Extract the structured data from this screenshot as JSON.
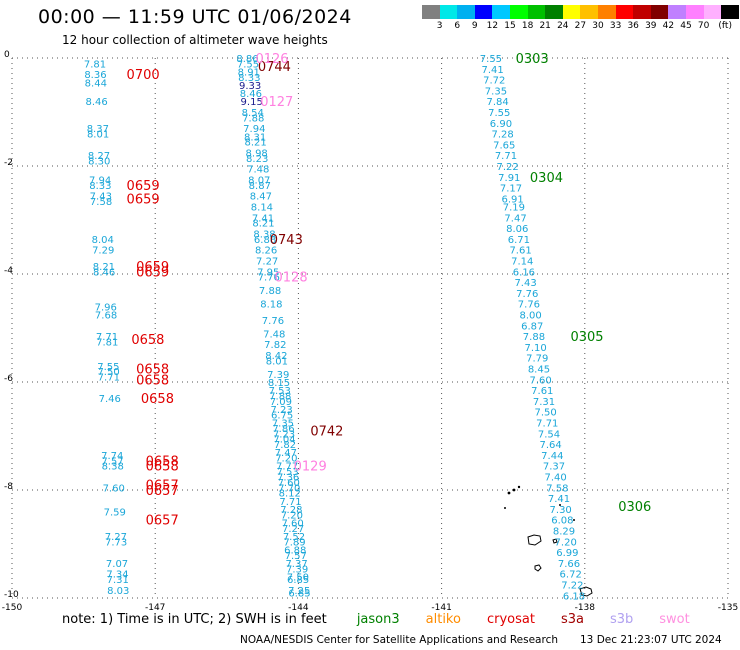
{
  "title": "00:00 — 11:59 UTC 01/06/2024",
  "subtitle": "12 hour collection of altimeter wave heights",
  "legend": {
    "colors": [
      "#808080",
      "#00e8e8",
      "#00b0f0",
      "#0000ff",
      "#00c8ff",
      "#00ff00",
      "#00c000",
      "#008000",
      "#ffff00",
      "#ffc000",
      "#ff8000",
      "#ff0000",
      "#c00000",
      "#800000",
      "#c080ff",
      "#ff80ff",
      "#ffb0ff",
      "#000000"
    ],
    "labels": [
      "3",
      "6",
      "9",
      "12",
      "15",
      "18",
      "21",
      "24",
      "27",
      "30",
      "33",
      "36",
      "39",
      "42",
      "45",
      "70",
      "(ft)"
    ]
  },
  "note": {
    "text": "note:  1) Time is in UTC;  2) SWH is in feet",
    "missions": [
      {
        "name": "jason3",
        "color": "#008000"
      },
      {
        "name": "altiko",
        "color": "#ff8c00"
      },
      {
        "name": "cryosat",
        "color": "#e00000"
      },
      {
        "name": "s3a",
        "color": "#a00000"
      },
      {
        "name": "s3b",
        "color": "#b0a0f0"
      },
      {
        "name": "swot",
        "color": "#ff90e0"
      }
    ]
  },
  "credit": "NOAA/NESDIS Center for Satellite Applications and Research",
  "timestamp": "13 Dec 21:23:07 UTC 2024",
  "chart_data": {
    "type": "scatter",
    "title": "12 hour collection of altimeter wave heights",
    "xlabel": "",
    "ylabel": "",
    "xlim": [
      -150,
      -135
    ],
    "ylim": [
      -10,
      0
    ],
    "grid": true,
    "x_ticks": [
      "-150",
      "-147",
      "-144",
      "-141",
      "-138",
      "-135"
    ],
    "y_ticks": [
      "0",
      "-2",
      "-4",
      "-6",
      "-8",
      "-10"
    ],
    "series": [
      {
        "name": "0700-0657 pass",
        "color": "#1aa6d8",
        "lon": -148.5,
        "values": [
          {
            "lat": -0.1,
            "v": "7.81"
          },
          {
            "lat": -0.3,
            "v": "8.36"
          },
          {
            "lat": -0.45,
            "v": "8.44"
          },
          {
            "lat": -0.8,
            "v": "8.46"
          },
          {
            "lat": -1.3,
            "v": "8.37"
          },
          {
            "lat": -1.4,
            "v": "8.01"
          },
          {
            "lat": -1.8,
            "v": "8.27"
          },
          {
            "lat": -1.9,
            "v": "8.30"
          },
          {
            "lat": -2.25,
            "v": "7.94"
          },
          {
            "lat": -2.35,
            "v": "8.33"
          },
          {
            "lat": -2.55,
            "v": "7.43"
          },
          {
            "lat": -2.65,
            "v": "7.58"
          },
          {
            "lat": -3.35,
            "v": "8.04"
          },
          {
            "lat": -3.55,
            "v": "7.29"
          },
          {
            "lat": -3.85,
            "v": "8.21"
          },
          {
            "lat": -3.95,
            "v": "8.46"
          },
          {
            "lat": -4.6,
            "v": "7.96"
          },
          {
            "lat": -4.75,
            "v": "7.68"
          },
          {
            "lat": -5.15,
            "v": "7.71"
          },
          {
            "lat": -5.25,
            "v": "7.81"
          },
          {
            "lat": -5.7,
            "v": "7.55"
          },
          {
            "lat": -5.8,
            "v": "7.50"
          },
          {
            "lat": -5.9,
            "v": "7.71"
          },
          {
            "lat": -6.3,
            "v": "7.46"
          },
          {
            "lat": -7.35,
            "v": "7.74"
          },
          {
            "lat": -7.45,
            "v": "7.57"
          },
          {
            "lat": -7.55,
            "v": "8.38"
          },
          {
            "lat": -7.95,
            "v": "7.60"
          },
          {
            "lat": -8.4,
            "v": "7.59"
          },
          {
            "lat": -8.85,
            "v": "7.27"
          },
          {
            "lat": -8.95,
            "v": "7.73"
          },
          {
            "lat": -9.35,
            "v": "7.07"
          },
          {
            "lat": -9.55,
            "v": "7.34"
          },
          {
            "lat": -9.65,
            "v": "7.31"
          },
          {
            "lat": -9.85,
            "v": "8.03"
          }
        ]
      },
      {
        "name": "0744-0742 pass",
        "color": "#1aa6d8",
        "lon": -145.3,
        "values": [
          {
            "lat": 0.0,
            "v": "8.86"
          },
          {
            "lat": -0.1,
            "v": "7.55"
          },
          {
            "lat": -0.25,
            "v": "8.91"
          },
          {
            "lat": -0.35,
            "v": "8.33"
          },
          {
            "lat": -0.5,
            "v": "9.33"
          },
          {
            "lat": -0.65,
            "v": "8.46"
          },
          {
            "lat": -0.8,
            "v": "9.15"
          },
          {
            "lat": -1.0,
            "v": "8.54"
          },
          {
            "lat": -1.1,
            "v": "7.88"
          },
          {
            "lat": -1.3,
            "v": "7.94"
          },
          {
            "lat": -1.45,
            "v": "8.31"
          },
          {
            "lat": -1.55,
            "v": "8.21"
          },
          {
            "lat": -1.75,
            "v": "8.98"
          },
          {
            "lat": -1.85,
            "v": "8.23"
          },
          {
            "lat": -2.05,
            "v": "7.48"
          },
          {
            "lat": -2.25,
            "v": "8.07"
          },
          {
            "lat": -2.35,
            "v": "8.87"
          },
          {
            "lat": -2.55,
            "v": "8.47"
          },
          {
            "lat": -2.75,
            "v": "8.14"
          },
          {
            "lat": -2.95,
            "v": "7.41"
          },
          {
            "lat": -3.05,
            "v": "8.21"
          },
          {
            "lat": -3.25,
            "v": "8.38"
          },
          {
            "lat": -3.35,
            "v": "6.88"
          },
          {
            "lat": -3.55,
            "v": "8.26"
          },
          {
            "lat": -3.75,
            "v": "7.27"
          },
          {
            "lat": -3.95,
            "v": "7.95"
          },
          {
            "lat": -4.05,
            "v": "7.76"
          },
          {
            "lat": -4.3,
            "v": "7.88"
          },
          {
            "lat": -4.55,
            "v": "8.18"
          },
          {
            "lat": -4.85,
            "v": "7.76"
          },
          {
            "lat": -5.1,
            "v": "7.48"
          },
          {
            "lat": -5.3,
            "v": "7.82"
          },
          {
            "lat": -5.5,
            "v": "8.42"
          },
          {
            "lat": -5.6,
            "v": "8.01"
          },
          {
            "lat": -5.85,
            "v": "7.39"
          },
          {
            "lat": -6.0,
            "v": "8.15"
          },
          {
            "lat": -6.15,
            "v": "7.53"
          },
          {
            "lat": -6.25,
            "v": "7.88"
          },
          {
            "lat": -6.35,
            "v": "7.09"
          },
          {
            "lat": -6.5,
            "v": "7.23"
          },
          {
            "lat": -6.6,
            "v": "6.75"
          },
          {
            "lat": -6.75,
            "v": "7.35"
          },
          {
            "lat": -6.85,
            "v": "7.86"
          },
          {
            "lat": -6.95,
            "v": "7.23"
          },
          {
            "lat": -7.05,
            "v": "7.04"
          },
          {
            "lat": -7.15,
            "v": "7.82"
          },
          {
            "lat": -7.3,
            "v": "7.47"
          },
          {
            "lat": -7.4,
            "v": "7.20"
          },
          {
            "lat": -7.55,
            "v": "7.77"
          },
          {
            "lat": -7.65,
            "v": "7.53"
          },
          {
            "lat": -7.75,
            "v": "7.36"
          },
          {
            "lat": -7.85,
            "v": "7.60"
          },
          {
            "lat": -7.95,
            "v": "7.70"
          },
          {
            "lat": -8.05,
            "v": "8.12"
          },
          {
            "lat": -8.2,
            "v": "7.71"
          },
          {
            "lat": -8.35,
            "v": "7.28"
          },
          {
            "lat": -8.45,
            "v": "7.20"
          },
          {
            "lat": -8.6,
            "v": "7.60"
          },
          {
            "lat": -8.7,
            "v": "7.27"
          },
          {
            "lat": -8.85,
            "v": "7.52"
          },
          {
            "lat": -8.95,
            "v": "7.89"
          },
          {
            "lat": -9.1,
            "v": "6.88"
          },
          {
            "lat": -9.2,
            "v": "7.57"
          },
          {
            "lat": -9.35,
            "v": "7.37"
          },
          {
            "lat": -9.45,
            "v": "7.39"
          },
          {
            "lat": -9.6,
            "v": "7.50"
          },
          {
            "lat": -9.65,
            "v": "6.85"
          },
          {
            "lat": -9.85,
            "v": "7.25"
          },
          {
            "lat": -9.9,
            "v": "6.85"
          }
        ]
      },
      {
        "name": "0303-0306 pass",
        "color": "#1aa6d8",
        "lon": -140.2,
        "values": [
          {
            "lat": 0.0,
            "v": "7.55"
          },
          {
            "lat": -0.2,
            "v": "7.41"
          },
          {
            "lat": -0.4,
            "v": "7.72"
          },
          {
            "lat": -0.6,
            "v": "7.35"
          },
          {
            "lat": -0.8,
            "v": "7.84"
          },
          {
            "lat": -1.0,
            "v": "7.55"
          },
          {
            "lat": -1.2,
            "v": "6.90"
          },
          {
            "lat": -1.4,
            "v": "7.28"
          },
          {
            "lat": -1.6,
            "v": "7.65"
          },
          {
            "lat": -1.8,
            "v": "7.71"
          },
          {
            "lat": -2.0,
            "v": "7.22"
          },
          {
            "lat": -2.2,
            "v": "7.91"
          },
          {
            "lat": -2.4,
            "v": "7.17"
          },
          {
            "lat": -2.6,
            "v": "6.91"
          },
          {
            "lat": -2.75,
            "v": "7.19"
          },
          {
            "lat": -2.95,
            "v": "7.47"
          },
          {
            "lat": -3.15,
            "v": "8.06"
          },
          {
            "lat": -3.35,
            "v": "6.71"
          },
          {
            "lat": -3.55,
            "v": "7.61"
          },
          {
            "lat": -3.75,
            "v": "7.14"
          },
          {
            "lat": -3.95,
            "v": "6.16"
          },
          {
            "lat": -4.15,
            "v": "7.43"
          },
          {
            "lat": -4.35,
            "v": "7.76"
          },
          {
            "lat": -4.55,
            "v": "7.76"
          },
          {
            "lat": -4.75,
            "v": "8.00"
          },
          {
            "lat": -4.95,
            "v": "6.87"
          },
          {
            "lat": -5.15,
            "v": "7.88"
          },
          {
            "lat": -5.35,
            "v": "7.10"
          },
          {
            "lat": -5.55,
            "v": "7.79"
          },
          {
            "lat": -5.75,
            "v": "8.45"
          },
          {
            "lat": -5.95,
            "v": "7.60"
          },
          {
            "lat": -6.15,
            "v": "7.61"
          },
          {
            "lat": -6.35,
            "v": "7.31"
          },
          {
            "lat": -6.55,
            "v": "7.50"
          },
          {
            "lat": -6.75,
            "v": "7.71"
          },
          {
            "lat": -6.95,
            "v": "7.54"
          },
          {
            "lat": -7.15,
            "v": "7.64"
          },
          {
            "lat": -7.35,
            "v": "7.44"
          },
          {
            "lat": -7.55,
            "v": "7.37"
          },
          {
            "lat": -7.75,
            "v": "7.40"
          },
          {
            "lat": -7.95,
            "v": "7.58"
          },
          {
            "lat": -8.15,
            "v": "7.41"
          },
          {
            "lat": -8.35,
            "v": "7.30"
          },
          {
            "lat": -8.55,
            "v": "6.08"
          },
          {
            "lat": -8.75,
            "v": "8.29"
          },
          {
            "lat": -8.95,
            "v": "7.20"
          },
          {
            "lat": -9.15,
            "v": "6.99"
          },
          {
            "lat": -9.35,
            "v": "7.66"
          },
          {
            "lat": -9.55,
            "v": "6.72"
          },
          {
            "lat": -9.75,
            "v": "7.22"
          },
          {
            "lat": -9.95,
            "v": "6.18"
          }
        ]
      }
    ],
    "pass_times": [
      {
        "label": "0700",
        "lat": -0.3,
        "lon": -147.6,
        "color": "#e00000"
      },
      {
        "label": "0659",
        "lat": -2.35,
        "lon": -147.6,
        "color": "#e00000"
      },
      {
        "label": "0659",
        "lat": -2.6,
        "lon": -147.6,
        "color": "#e00000"
      },
      {
        "label": "0659",
        "lat": -3.85,
        "lon": -147.4,
        "color": "#e00000"
      },
      {
        "lat": -3.95,
        "label": "0659",
        "lon": -147.4,
        "color": "#e00000"
      },
      {
        "label": "0658",
        "lat": -5.2,
        "lon": -147.5,
        "color": "#e00000"
      },
      {
        "label": "0658",
        "lat": -5.75,
        "lon": -147.4,
        "color": "#e00000"
      },
      {
        "label": "0658",
        "lat": -5.95,
        "lon": -147.4,
        "color": "#e00000"
      },
      {
        "label": "0658",
        "lat": -6.3,
        "lon": -147.3,
        "color": "#e00000"
      },
      {
        "label": "0658",
        "lat": -7.45,
        "lon": -147.2,
        "color": "#e00000"
      },
      {
        "label": "0658",
        "lat": -7.55,
        "lon": -147.2,
        "color": "#e00000"
      },
      {
        "label": "0657",
        "lat": -7.9,
        "lon": -147.2,
        "color": "#e00000"
      },
      {
        "label": "0657",
        "lat": -8.0,
        "lon": -147.2,
        "color": "#e00000"
      },
      {
        "label": "0657",
        "lat": -8.55,
        "lon": -147.2,
        "color": "#e00000"
      },
      {
        "label": "0744",
        "lat": -0.15,
        "lon": -144.85,
        "color": "#800000"
      },
      {
        "label": "0743",
        "lat": -3.35,
        "lon": -144.6,
        "color": "#800000"
      },
      {
        "label": "0742",
        "lat": -6.9,
        "lon": -143.75,
        "color": "#800000"
      },
      {
        "label": "0126",
        "lat": 0.0,
        "lon": -144.9,
        "color": "#ff80e0"
      },
      {
        "label": "0127",
        "lat": -0.8,
        "lon": -144.8,
        "color": "#ff80e0"
      },
      {
        "label": "0128",
        "lat": -4.05,
        "lon": -144.5,
        "color": "#ff80e0"
      },
      {
        "label": "0129",
        "lat": -7.55,
        "lon": -144.1,
        "color": "#ff80e0"
      },
      {
        "label": "0303",
        "lat": 0.0,
        "lon": -139.45,
        "color": "#008000"
      },
      {
        "label": "0304",
        "lat": -2.2,
        "lon": -139.15,
        "color": "#008000"
      },
      {
        "label": "0305",
        "lat": -5.15,
        "lon": -138.3,
        "color": "#008000"
      },
      {
        "label": "0306",
        "lat": -8.3,
        "lon": -137.3,
        "color": "#008000"
      }
    ]
  }
}
